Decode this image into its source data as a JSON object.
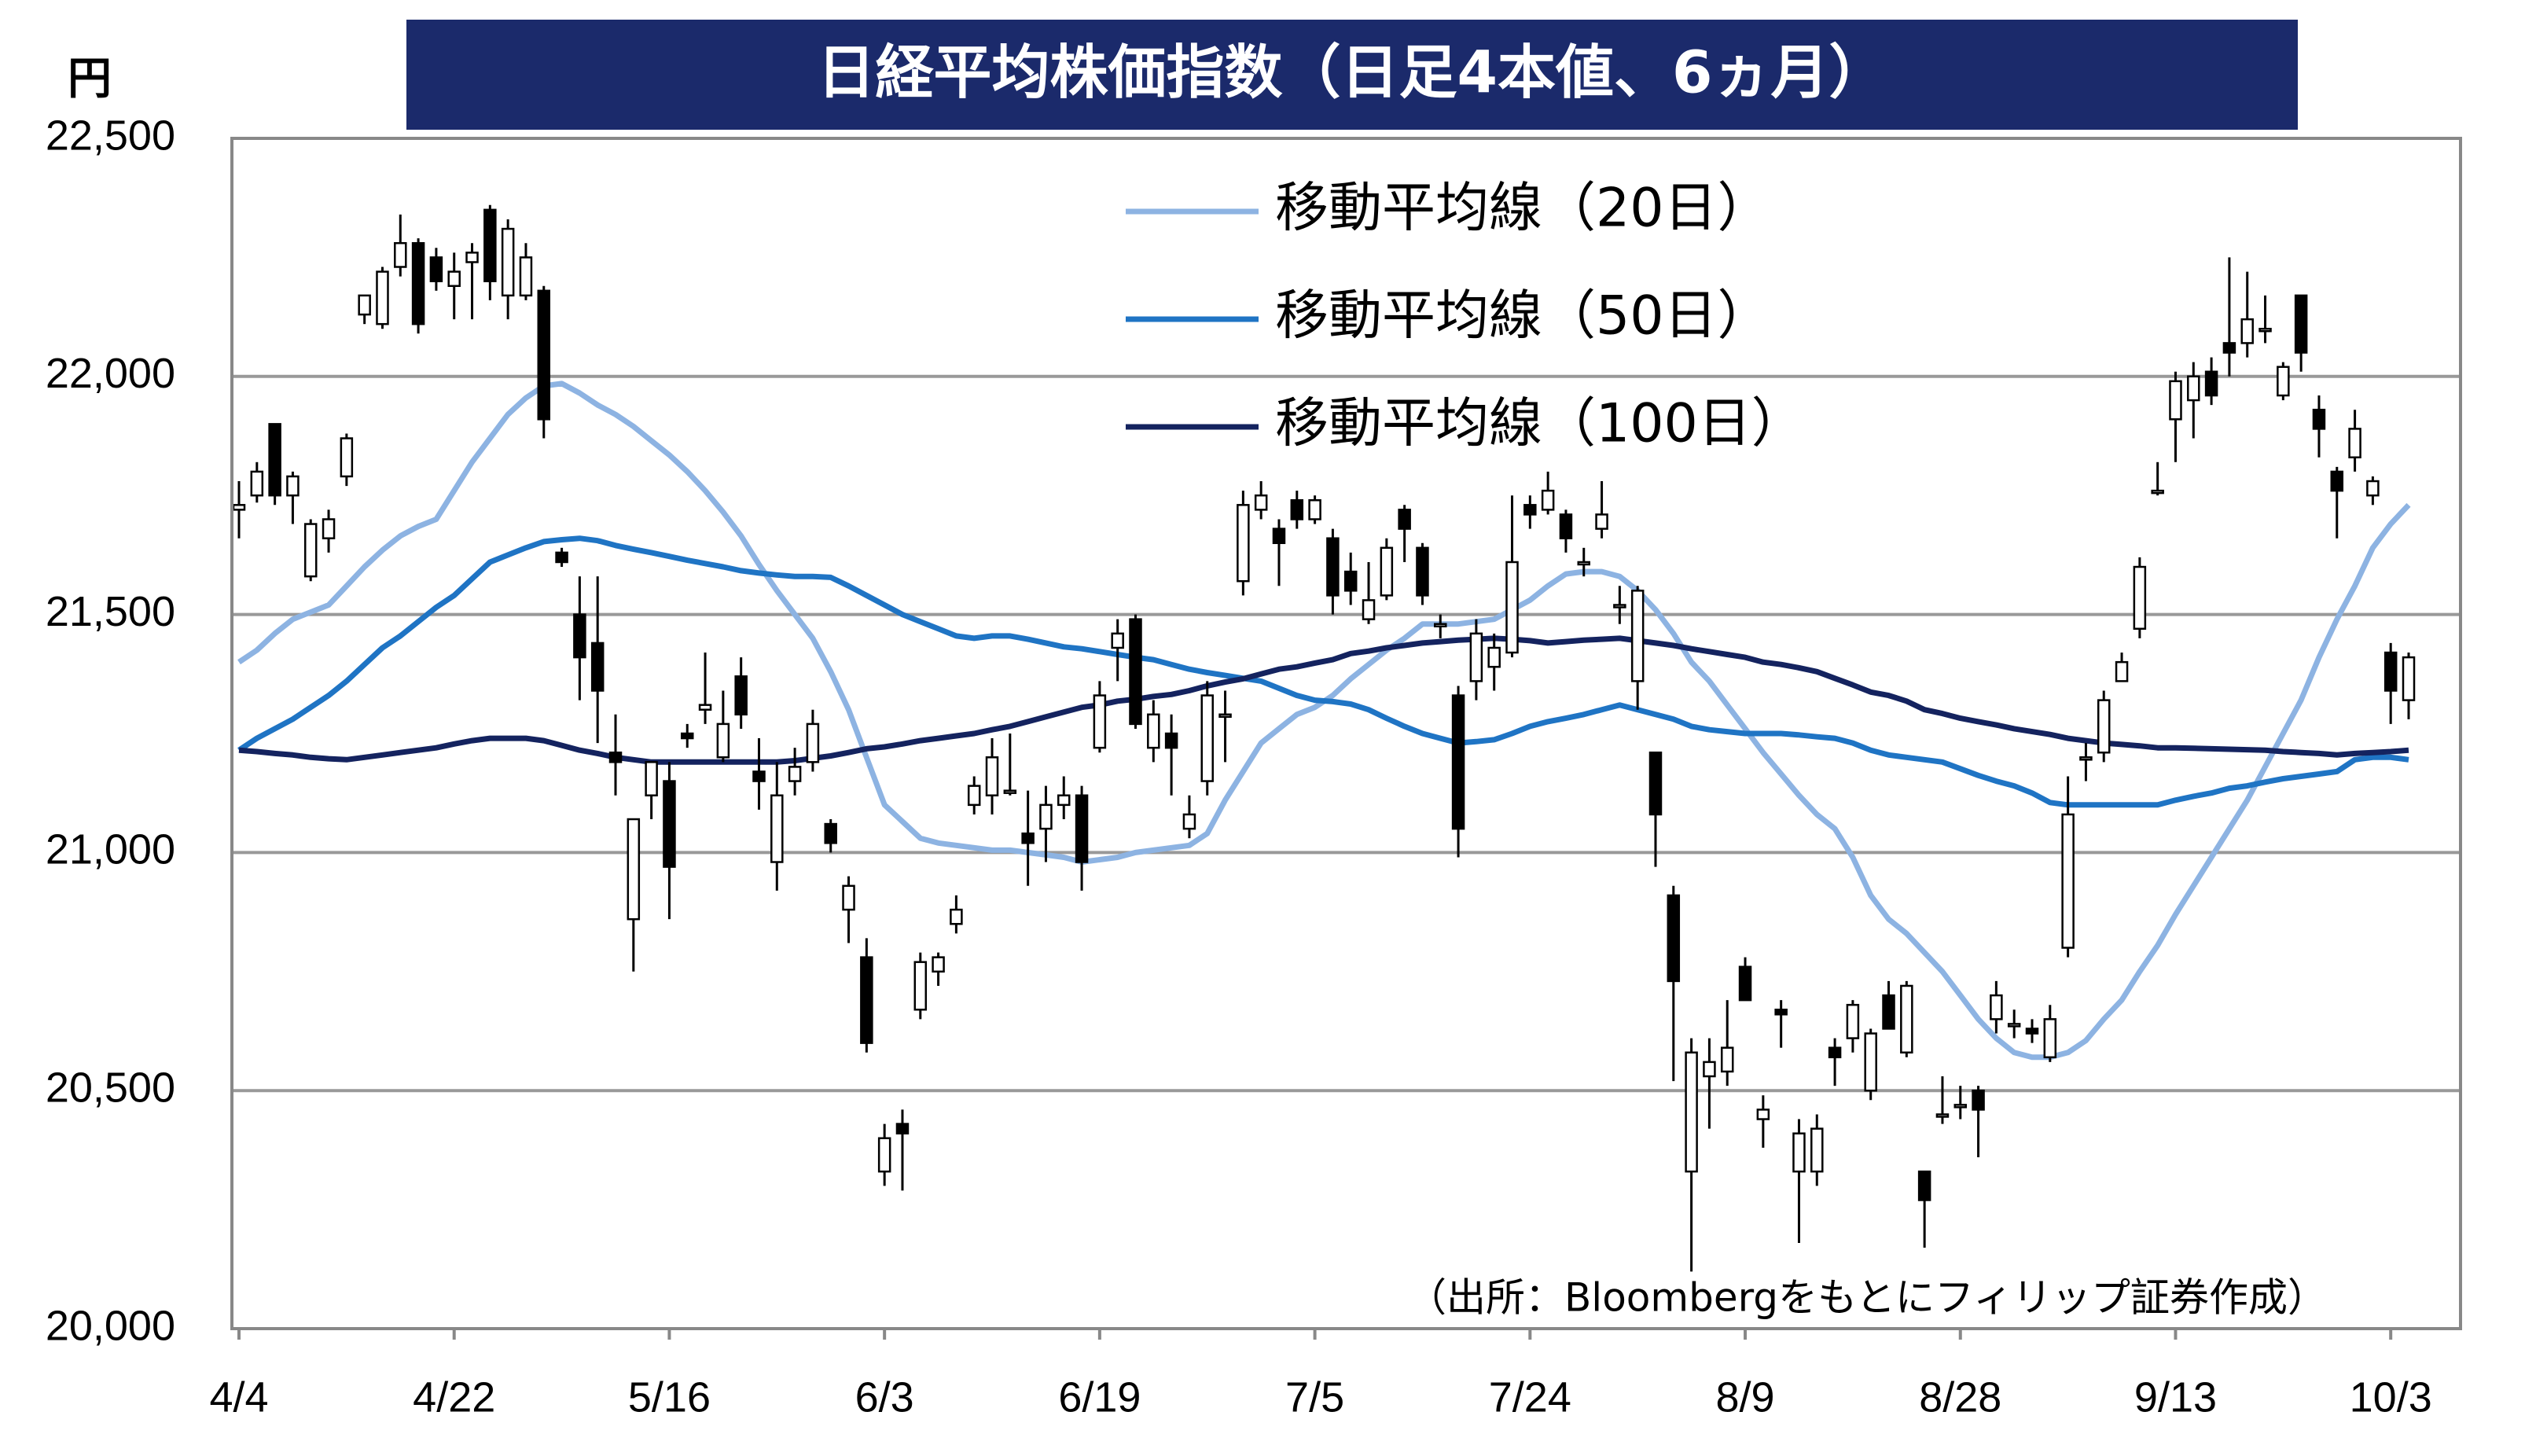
{
  "chart_data": {
    "type": "candlestick",
    "title": "日経平均株価指数（日足4本値、6ヵ月）",
    "y_unit": "円",
    "source": "（出所：Bloombergをもとにフィリップ証券作成）",
    "grid": true,
    "ylim": [
      20000,
      22500
    ],
    "yticks": [
      {
        "value": 20000,
        "label": "20,000"
      },
      {
        "value": 20500,
        "label": "20,500"
      },
      {
        "value": 21000,
        "label": "21,000"
      },
      {
        "value": 21500,
        "label": "21,500"
      },
      {
        "value": 22000,
        "label": "22,000"
      },
      {
        "value": 22500,
        "label": "22,500"
      }
    ],
    "categories": [
      "4/4",
      null,
      null,
      null,
      null,
      null,
      null,
      null,
      null,
      null,
      null,
      null,
      "4/22",
      null,
      null,
      null,
      null,
      null,
      null,
      null,
      null,
      null,
      null,
      null,
      "5/16",
      null,
      null,
      null,
      null,
      null,
      null,
      null,
      null,
      null,
      null,
      null,
      "6/3",
      null,
      null,
      null,
      null,
      null,
      null,
      null,
      null,
      null,
      null,
      null,
      "6/19",
      null,
      null,
      null,
      null,
      null,
      null,
      null,
      null,
      null,
      null,
      null,
      "7/5",
      null,
      null,
      null,
      null,
      null,
      null,
      null,
      null,
      null,
      null,
      null,
      "7/24",
      null,
      null,
      null,
      null,
      null,
      null,
      null,
      null,
      null,
      null,
      null,
      "8/9",
      null,
      null,
      null,
      null,
      null,
      null,
      null,
      null,
      null,
      null,
      null,
      "8/28",
      null,
      null,
      null,
      null,
      null,
      null,
      null,
      null,
      null,
      null,
      null,
      "9/13",
      null,
      null,
      null,
      null,
      null,
      null,
      null,
      null,
      null,
      null,
      null,
      "10/3",
      null
    ],
    "ohlc": {
      "open": [
        21720,
        21750,
        21900,
        21750,
        21580,
        21660,
        21790,
        22130,
        22110,
        22230,
        22280,
        22250,
        22190,
        22240,
        22350,
        22170,
        22170,
        22180,
        21630,
        21500,
        21440,
        21210,
        20860,
        21120,
        21150,
        21250,
        21300,
        21200,
        21370,
        21170,
        20980,
        21150,
        21190,
        21060,
        20880,
        20780,
        20330,
        20430,
        20670,
        20750,
        20850,
        21100,
        21120,
        21130,
        21040,
        21050,
        21100,
        21120,
        21220,
        21430,
        21490,
        21220,
        21250,
        21050,
        21150,
        21290,
        21570,
        21720,
        21680,
        21740,
        21700,
        21660,
        21590,
        21490,
        21540,
        21720,
        21640,
        21480,
        21330,
        21360,
        21390,
        21420,
        21730,
        21720,
        21710,
        21610,
        21680,
        21520,
        21360,
        21210,
        20910,
        20330,
        20530,
        20540,
        20760,
        20440,
        20670,
        20330,
        20330,
        20590,
        20610,
        20500,
        20700,
        20580,
        20330,
        20450,
        20470,
        20500,
        20650,
        20640,
        20630,
        20570,
        20800,
        21200,
        21210,
        21360,
        21470,
        21760,
        21910,
        21950,
        22010,
        22070,
        22070,
        22100,
        21960,
        22170,
        21930,
        21800,
        21830,
        21750,
        21420,
        21320
      ],
      "high": [
        21780,
        21820,
        21900,
        21800,
        21700,
        21720,
        21880,
        22170,
        22230,
        22340,
        22290,
        22270,
        22260,
        22280,
        22360,
        22330,
        22280,
        22190,
        21640,
        21580,
        21580,
        21290,
        21070,
        21190,
        21190,
        21270,
        21420,
        21340,
        21410,
        21240,
        21190,
        21220,
        21300,
        21070,
        20950,
        20820,
        20430,
        20460,
        20790,
        20790,
        20910,
        21160,
        21240,
        21250,
        21130,
        21140,
        21160,
        21140,
        21360,
        21490,
        21500,
        21320,
        21290,
        21120,
        21360,
        21340,
        21760,
        21780,
        21700,
        21760,
        21750,
        21680,
        21630,
        21610,
        21660,
        21730,
        21650,
        21500,
        21350,
        21490,
        21460,
        21750,
        21750,
        21800,
        21720,
        21640,
        21780,
        21560,
        21560,
        21210,
        20930,
        20610,
        20610,
        20690,
        20780,
        20490,
        20690,
        20440,
        20450,
        20610,
        20690,
        20630,
        20730,
        20730,
        20330,
        20530,
        20510,
        20510,
        20730,
        20670,
        20650,
        20680,
        21160,
        21230,
        21340,
        21420,
        21620,
        21820,
        22010,
        22030,
        22040,
        22250,
        22220,
        22170,
        22030,
        22170,
        21960,
        21810,
        21930,
        21790,
        21440,
        21420
      ],
      "low": [
        21660,
        21735,
        21730,
        21690,
        21570,
        21630,
        21770,
        22110,
        22100,
        22210,
        22090,
        22180,
        22120,
        22120,
        22160,
        22120,
        22160,
        21870,
        21600,
        21320,
        21230,
        21120,
        20750,
        21070,
        20860,
        21220,
        21270,
        21190,
        21260,
        21090,
        20920,
        21120,
        21170,
        21000,
        20810,
        20580,
        20300,
        20290,
        20650,
        20720,
        20830,
        21080,
        21080,
        21120,
        20930,
        20980,
        21070,
        20920,
        21210,
        21360,
        21260,
        21190,
        21120,
        21030,
        21120,
        21190,
        21540,
        21700,
        21560,
        21680,
        21690,
        21500,
        21520,
        21480,
        21530,
        21610,
        21520,
        21450,
        20990,
        21320,
        21340,
        21410,
        21680,
        21710,
        21630,
        21580,
        21660,
        21480,
        21300,
        20970,
        20520,
        20120,
        20420,
        20510,
        20690,
        20380,
        20590,
        20180,
        20300,
        20510,
        20580,
        20480,
        20630,
        20570,
        20170,
        20430,
        20440,
        20360,
        20620,
        20610,
        20600,
        20560,
        20780,
        21150,
        21190,
        21360,
        21450,
        21750,
        21820,
        21870,
        21940,
        22000,
        22040,
        22070,
        21950,
        22010,
        21830,
        21660,
        21800,
        21730,
        21270,
        21280
      ],
      "close": [
        21730,
        21800,
        21750,
        21790,
        21690,
        21700,
        21870,
        22170,
        22220,
        22280,
        22110,
        22200,
        22220,
        22260,
        22200,
        22310,
        22250,
        21910,
        21610,
        21410,
        21340,
        21190,
        21070,
        21190,
        20970,
        21240,
        21310,
        21270,
        21290,
        21150,
        21120,
        21180,
        21270,
        21020,
        20930,
        20600,
        20400,
        20410,
        20770,
        20780,
        20880,
        21140,
        21200,
        21130,
        21020,
        21100,
        21120,
        20980,
        21330,
        21460,
        21270,
        21290,
        21220,
        21080,
        21330,
        21290,
        21730,
        21750,
        21650,
        21700,
        21740,
        21540,
        21550,
        21530,
        21640,
        21680,
        21540,
        21480,
        21050,
        21460,
        21430,
        21610,
        21710,
        21760,
        21660,
        21610,
        21710,
        21520,
        21550,
        21080,
        20730,
        20580,
        20560,
        20590,
        20690,
        20460,
        20660,
        20410,
        20420,
        20570,
        20680,
        20620,
        20630,
        20720,
        20270,
        20450,
        20470,
        20460,
        20700,
        20640,
        20620,
        20650,
        21080,
        21200,
        21320,
        21400,
        21600,
        21760,
        21990,
        22000,
        21960,
        22050,
        22120,
        22100,
        22020,
        22050,
        21890,
        21760,
        21890,
        21780,
        21340,
        21410
      ]
    },
    "series": [
      {
        "name": "移動平均線（20日）",
        "color": "#8db3e2",
        "values": [
          21400,
          21425,
          21460,
          21490,
          21505,
          21520,
          21560,
          21600,
          21635,
          21665,
          21685,
          21700,
          21760,
          21820,
          21870,
          21920,
          21955,
          21980,
          21985,
          21965,
          21940,
          21920,
          21895,
          21865,
          21835,
          21800,
          21760,
          21715,
          21665,
          21605,
          21550,
          21500,
          21450,
          21380,
          21300,
          21200,
          21100,
          21065,
          21030,
          21020,
          21015,
          21010,
          21005,
          21005,
          21000,
          20995,
          20990,
          20980,
          20985,
          20990,
          21000,
          21005,
          21010,
          21015,
          21040,
          21110,
          21170,
          21230,
          21260,
          21290,
          21305,
          21330,
          21365,
          21395,
          21425,
          21450,
          21480,
          21480,
          21480,
          21485,
          21490,
          21510,
          21530,
          21560,
          21585,
          21590,
          21590,
          21580,
          21550,
          21510,
          21460,
          21400,
          21360,
          21310,
          21260,
          21210,
          21165,
          21120,
          21080,
          21050,
          20990,
          20910,
          20860,
          20830,
          20790,
          20750,
          20700,
          20650,
          20610,
          20580,
          20570,
          20570,
          20580,
          20605,
          20650,
          20690,
          20750,
          20805,
          20870,
          20930,
          20990,
          21050,
          21110,
          21180,
          21250,
          21320,
          21410,
          21490,
          21560,
          21640,
          21690,
          21730
        ]
      },
      {
        "name": "移動平均線（50日）",
        "color": "#1f74c4",
        "values": [
          21215,
          21240,
          21260,
          21280,
          21305,
          21330,
          21360,
          21395,
          21430,
          21455,
          21485,
          21515,
          21540,
          21575,
          21610,
          21625,
          21640,
          21653,
          21657,
          21660,
          21655,
          21645,
          21637,
          21630,
          21622,
          21614,
          21607,
          21600,
          21592,
          21587,
          21583,
          21580,
          21580,
          21578,
          21560,
          21540,
          21520,
          21500,
          21485,
          21470,
          21455,
          21450,
          21455,
          21455,
          21448,
          21440,
          21432,
          21428,
          21422,
          21416,
          21410,
          21405,
          21395,
          21385,
          21378,
          21372,
          21366,
          21360,
          21345,
          21330,
          21320,
          21317,
          21312,
          21300,
          21282,
          21265,
          21250,
          21240,
          21230,
          21233,
          21237,
          21250,
          21265,
          21275,
          21282,
          21290,
          21300,
          21310,
          21300,
          21290,
          21280,
          21265,
          21258,
          21254,
          21250,
          21250,
          21250,
          21247,
          21243,
          21240,
          21230,
          21215,
          21205,
          21200,
          21195,
          21190,
          21176,
          21162,
          21150,
          21140,
          21125,
          21105,
          21100,
          21100,
          21100,
          21100,
          21100,
          21100,
          21110,
          21118,
          21125,
          21135,
          21140,
          21148,
          21155,
          21160,
          21165,
          21170,
          21195,
          21200,
          21200,
          21195
        ]
      },
      {
        "name": "移動平均線（100日）",
        "color": "#14235f",
        "values": [
          21215,
          21212,
          21208,
          21205,
          21200,
          21197,
          21195,
          21200,
          21205,
          21210,
          21215,
          21220,
          21228,
          21235,
          21240,
          21240,
          21240,
          21235,
          21225,
          21215,
          21208,
          21200,
          21195,
          21190,
          21190,
          21190,
          21190,
          21190,
          21190,
          21190,
          21190,
          21193,
          21198,
          21203,
          21210,
          21218,
          21222,
          21228,
          21235,
          21240,
          21245,
          21250,
          21258,
          21265,
          21275,
          21285,
          21295,
          21305,
          21310,
          21318,
          21322,
          21328,
          21332,
          21340,
          21350,
          21358,
          21365,
          21375,
          21385,
          21390,
          21398,
          21405,
          21418,
          21423,
          21430,
          21435,
          21440,
          21443,
          21446,
          21448,
          21450,
          21448,
          21445,
          21440,
          21443,
          21446,
          21448,
          21450,
          21445,
          21440,
          21435,
          21428,
          21422,
          21416,
          21410,
          21400,
          21395,
          21388,
          21380,
          21366,
          21352,
          21337,
          21330,
          21318,
          21300,
          21292,
          21282,
          21275,
          21268,
          21260,
          21254,
          21248,
          21240,
          21235,
          21230,
          21227,
          21224,
          21220,
          21220,
          21219,
          21218,
          21217,
          21216,
          21215,
          21212,
          21210,
          21208,
          21205,
          21208,
          21210,
          21212,
          21215
        ]
      }
    ]
  }
}
